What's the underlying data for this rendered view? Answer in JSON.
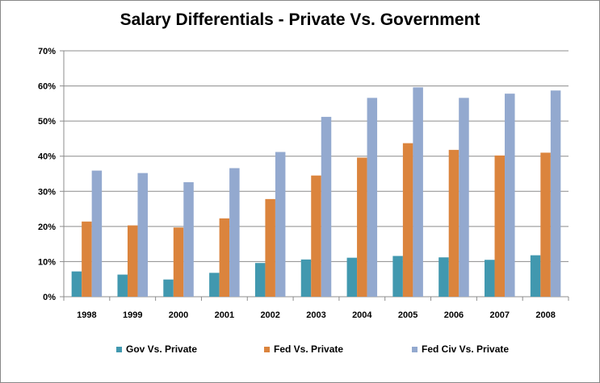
{
  "chart_data": {
    "type": "bar",
    "title": "Salary Differentials - Private Vs. Government",
    "xlabel": "",
    "ylabel": "",
    "categories": [
      "1998",
      "1999",
      "2000",
      "2001",
      "2002",
      "2003",
      "2004",
      "2005",
      "2006",
      "2007",
      "2008"
    ],
    "ylim": [
      0,
      70
    ],
    "y_ticks": [
      "0%",
      "10%",
      "20%",
      "30%",
      "40%",
      "50%",
      "60%",
      "70%"
    ],
    "y_tick_values": [
      0,
      10,
      20,
      30,
      40,
      50,
      60,
      70
    ],
    "grid": true,
    "legend_position": "bottom",
    "series": [
      {
        "name": "Gov Vs. Private",
        "color": "#4198AF",
        "values": [
          7.2,
          6.3,
          4.9,
          6.8,
          9.6,
          10.6,
          11.1,
          11.6,
          11.2,
          10.5,
          11.8
        ]
      },
      {
        "name": "Fed Vs. Private",
        "color": "#DB843D",
        "values": [
          21.4,
          20.3,
          19.7,
          22.3,
          27.8,
          34.5,
          39.6,
          43.7,
          41.8,
          40.2,
          41.0
        ]
      },
      {
        "name": "Fed Civ Vs. Private",
        "color": "#93A9CF",
        "values": [
          35.9,
          35.2,
          32.6,
          36.6,
          41.2,
          51.2,
          56.6,
          59.6,
          56.6,
          57.8,
          58.7
        ]
      }
    ]
  }
}
